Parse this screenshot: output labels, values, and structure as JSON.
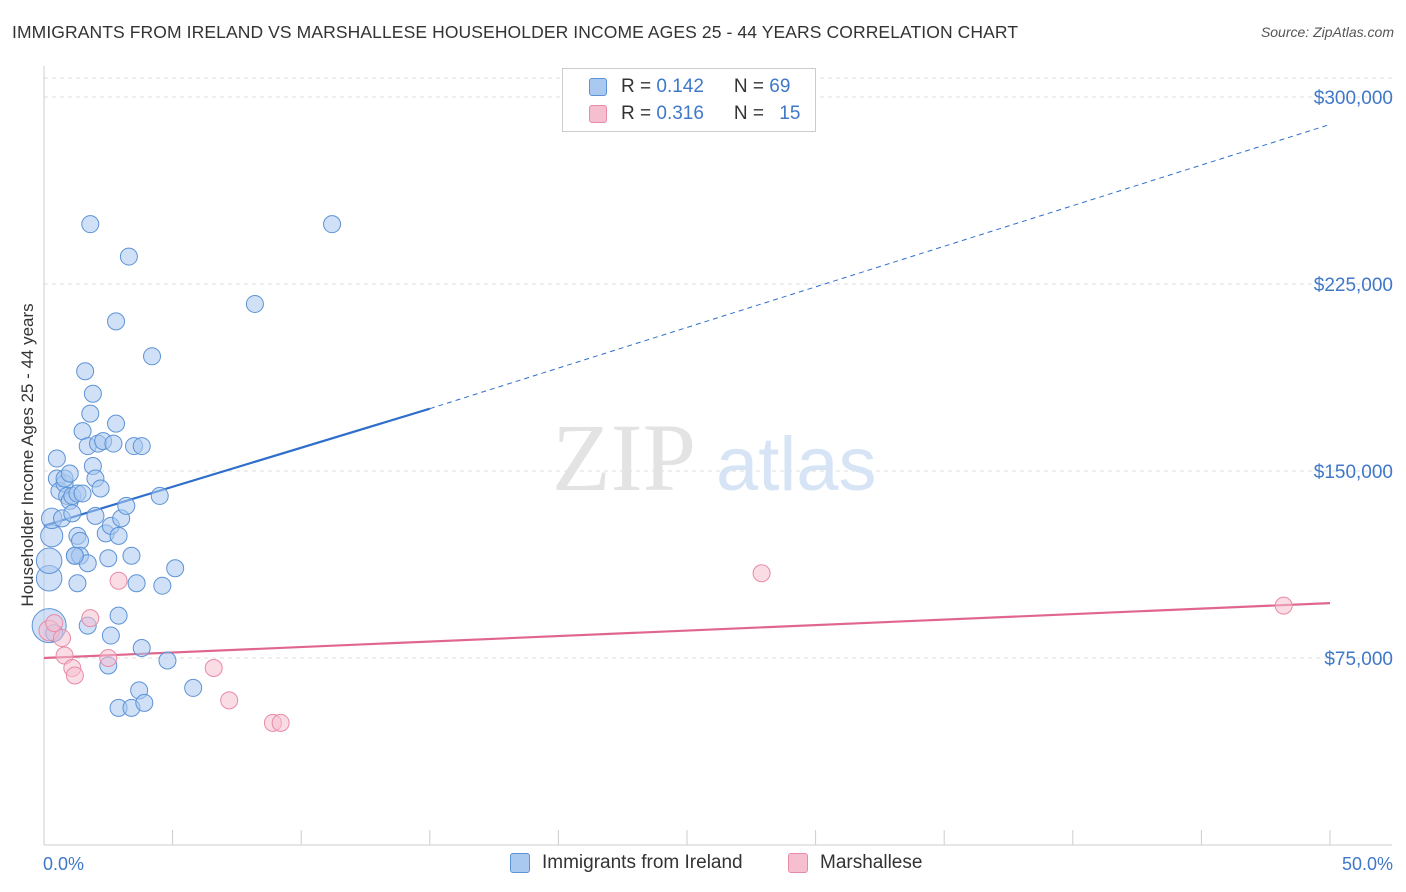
{
  "title": "IMMIGRANTS FROM IRELAND VS MARSHALLESE HOUSEHOLDER INCOME AGES 25 - 44 YEARS CORRELATION CHART",
  "source": "Source: ZipAtlas.com",
  "colors": {
    "ireland_fill": "#a9c9f0",
    "ireland_stroke": "#5d93d6",
    "ireland_line": "#2f6fcb",
    "marshallese_fill": "#f6bfd0",
    "marshallese_stroke": "#e88aa8",
    "marshallese_line": "#e0668e",
    "tick_text": "#3f78c8",
    "grid": "#dddddd"
  },
  "legend": {
    "rows": [
      {
        "r_label": "R = ",
        "r_value": "0.142",
        "n_label": "N = ",
        "n_value": "69",
        "series": "ireland"
      },
      {
        "r_label": "R = ",
        "r_value": "0.316",
        "n_label": "N = ",
        "n_value": "15",
        "series": "marshallese"
      }
    ]
  },
  "watermark": {
    "zip": "ZIP",
    "atlas": "atlas"
  },
  "bottom_legend": {
    "ireland": "Immigrants from Ireland",
    "marshallese": "Marshallese"
  },
  "chart_data": {
    "type": "scatter",
    "title": "IMMIGRANTS FROM IRELAND VS MARSHALLESE HOUSEHOLDER INCOME AGES 25 - 44 YEARS CORRELATION CHART",
    "xlabel": "",
    "ylabel": "Householder Income Ages 25 - 44 years",
    "xlim": [
      0,
      50
    ],
    "ylim": [
      0,
      307000
    ],
    "x_tick_labels": {
      "left": "0.0%",
      "right": "50.0%"
    },
    "y_ticks": [
      {
        "value": 75000,
        "label": "$75,000"
      },
      {
        "value": 150000,
        "label": "$150,000"
      },
      {
        "value": 225000,
        "label": "$225,000"
      },
      {
        "value": 300000,
        "label": "$300,000"
      }
    ],
    "series": [
      {
        "name": "Immigrants from Ireland",
        "key": "ireland",
        "r": 0.142,
        "n": 69,
        "trend": {
          "x0": 0,
          "y0": 128000,
          "x1": 15,
          "y1": 175000,
          "dash_to_x": 50,
          "dash_to_y": 289000
        },
        "points": [
          [
            0.2,
            88000,
            2.0
          ],
          [
            0.2,
            107000,
            1.5
          ],
          [
            0.2,
            114000,
            1.5
          ],
          [
            0.3,
            124000,
            1.3
          ],
          [
            0.3,
            131000,
            1.2
          ],
          [
            0.5,
            155000,
            1
          ],
          [
            0.5,
            147000,
            1
          ],
          [
            0.6,
            142000,
            1
          ],
          [
            0.7,
            131000,
            1
          ],
          [
            0.8,
            145000,
            1
          ],
          [
            0.8,
            147000,
            1
          ],
          [
            0.9,
            140000,
            1
          ],
          [
            1.0,
            149000,
            1
          ],
          [
            1.0,
            138000,
            1
          ],
          [
            1.1,
            133000,
            1
          ],
          [
            1.1,
            140000,
            1
          ],
          [
            1.2,
            116000,
            1
          ],
          [
            1.3,
            141000,
            1
          ],
          [
            1.3,
            105000,
            1
          ],
          [
            1.3,
            124000,
            1
          ],
          [
            1.4,
            122000,
            1
          ],
          [
            1.4,
            116000,
            1
          ],
          [
            1.5,
            166000,
            1
          ],
          [
            1.5,
            141000,
            1
          ],
          [
            1.6,
            190000,
            1
          ],
          [
            1.7,
            113000,
            1
          ],
          [
            1.7,
            88000,
            1
          ],
          [
            1.7,
            160000,
            1
          ],
          [
            1.8,
            173000,
            1
          ],
          [
            1.8,
            249000,
            1
          ],
          [
            1.9,
            181000,
            1
          ],
          [
            1.9,
            152000,
            1
          ],
          [
            2.0,
            147000,
            1
          ],
          [
            2.0,
            132000,
            1
          ],
          [
            2.1,
            161000,
            1
          ],
          [
            2.2,
            143000,
            1
          ],
          [
            2.3,
            162000,
            1
          ],
          [
            2.4,
            125000,
            1
          ],
          [
            2.5,
            115000,
            1
          ],
          [
            2.5,
            72000,
            1
          ],
          [
            2.6,
            84000,
            1
          ],
          [
            2.6,
            128000,
            1
          ],
          [
            2.7,
            161000,
            1
          ],
          [
            2.8,
            169000,
            1
          ],
          [
            2.8,
            210000,
            1
          ],
          [
            2.9,
            124000,
            1
          ],
          [
            2.9,
            92000,
            1
          ],
          [
            2.9,
            55000,
            1
          ],
          [
            3.0,
            131000,
            1
          ],
          [
            3.2,
            136000,
            1
          ],
          [
            3.3,
            236000,
            1
          ],
          [
            3.4,
            116000,
            1
          ],
          [
            3.4,
            55000,
            1
          ],
          [
            3.5,
            160000,
            1
          ],
          [
            3.6,
            105000,
            1
          ],
          [
            3.7,
            62000,
            1
          ],
          [
            3.8,
            160000,
            1
          ],
          [
            3.8,
            79000,
            1
          ],
          [
            3.9,
            57000,
            1
          ],
          [
            4.2,
            196000,
            1
          ],
          [
            4.5,
            140000,
            1
          ],
          [
            4.6,
            104000,
            1
          ],
          [
            4.8,
            74000,
            1
          ],
          [
            5.1,
            111000,
            1
          ],
          [
            5.8,
            63000,
            1
          ],
          [
            8.2,
            217000,
            1
          ],
          [
            11.2,
            249000,
            1
          ],
          [
            0.4,
            85000,
            1
          ],
          [
            1.2,
            116000,
            1
          ]
        ]
      },
      {
        "name": "Marshallese",
        "key": "marshallese",
        "r": 0.316,
        "n": 15,
        "trend": {
          "x0": 0,
          "y0": 75000,
          "x1": 50,
          "y1": 97000
        },
        "points": [
          [
            0.2,
            86000,
            1.2
          ],
          [
            0.4,
            89000,
            1
          ],
          [
            0.7,
            83000,
            1
          ],
          [
            0.8,
            76000,
            1
          ],
          [
            1.1,
            71000,
            1
          ],
          [
            1.2,
            68000,
            1
          ],
          [
            1.8,
            91000,
            1
          ],
          [
            2.5,
            75000,
            1
          ],
          [
            2.9,
            106000,
            1
          ],
          [
            6.6,
            71000,
            1
          ],
          [
            7.2,
            58000,
            1
          ],
          [
            8.9,
            49000,
            1
          ],
          [
            9.2,
            49000,
            1
          ],
          [
            27.9,
            109000,
            1
          ],
          [
            48.2,
            96000,
            1
          ]
        ]
      }
    ]
  }
}
